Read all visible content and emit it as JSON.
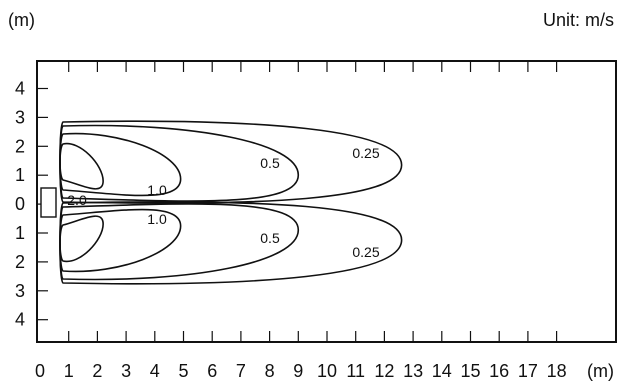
{
  "header": {
    "y_unit": "(m)",
    "unit_note": "Unit: m/s"
  },
  "x_axis": {
    "ticks": [
      "0",
      "1",
      "2",
      "3",
      "4",
      "5",
      "6",
      "7",
      "8",
      "9",
      "10",
      "11",
      "12",
      "13",
      "14",
      "15",
      "16",
      "17",
      "18"
    ],
    "unit": "(m)"
  },
  "y_axis": {
    "ticks": [
      "4",
      "3",
      "2",
      "1",
      "0",
      "1",
      "2",
      "3",
      "4"
    ]
  },
  "contours": [
    {
      "value": "2.0",
      "reach_m": 2.2
    },
    {
      "value": "1.0",
      "reach_m": 4.9
    },
    {
      "value": "0.5",
      "reach_m": 9.0
    },
    {
      "value": "0.25",
      "reach_m": 12.6
    }
  ],
  "contour_labels": [
    {
      "text": "2.0"
    },
    {
      "text": "1.0"
    },
    {
      "text": "1.0"
    },
    {
      "text": "0.5"
    },
    {
      "text": "0.5"
    },
    {
      "text": "0.25"
    },
    {
      "text": "0.25"
    }
  ]
}
